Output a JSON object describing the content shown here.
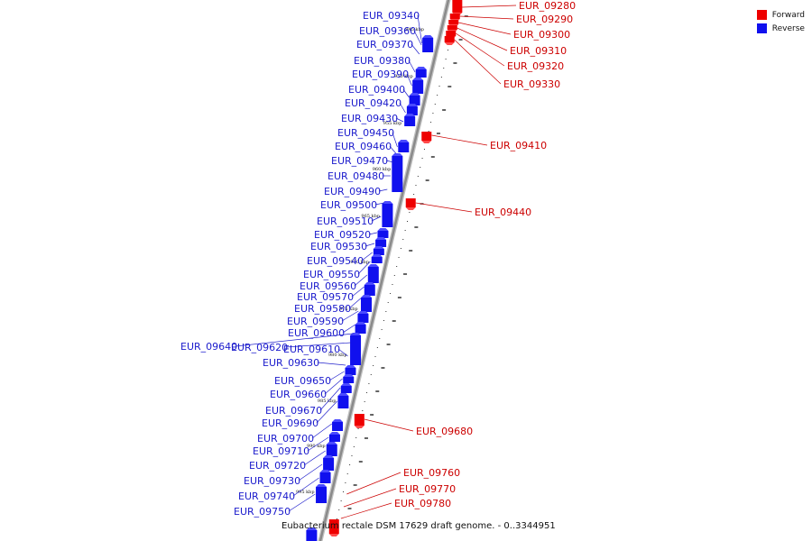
{
  "caption": "Eubacterium rectale DSM 17629 draft genome. - 0..3344951",
  "legend": {
    "items": [
      {
        "label": "Forward",
        "color": "#ee0000"
      },
      {
        "label": "Reverse",
        "color": "#1010ee"
      }
    ]
  },
  "colors": {
    "forward": "#ee0000",
    "reverse": "#1010ee",
    "backbone": "#8a8a8a",
    "leader_forward": "#cc0000",
    "leader_reverse": "#2020cc"
  },
  "ticks": [
    "945 kbp",
    "950 kbp",
    "955 kbp",
    "960 kbp",
    "965 kbp",
    "970 kbp",
    "975 kbp",
    "980 kbp",
    "985 kbp",
    "990 kbp",
    "995 kbp"
  ],
  "reverse_genes": [
    "EUR_09340",
    "EUR_09360",
    "EUR_09370",
    "EUR_09380",
    "EUR_09390",
    "EUR_09400",
    "EUR_09420",
    "EUR_09430",
    "EUR_09450",
    "EUR_09460",
    "EUR_09470",
    "EUR_09480",
    "EUR_09490",
    "EUR_09500",
    "EUR_09510",
    "EUR_09520",
    "EUR_09530",
    "EUR_09540",
    "EUR_09550",
    "EUR_09560",
    "EUR_09570",
    "EUR_09580",
    "EUR_09590",
    "EUR_09600",
    "EUR_09640",
    "EUR_09620",
    "EUR_09610",
    "EUR_09630",
    "EUR_09650",
    "EUR_09660",
    "EUR_09670",
    "EUR_09690",
    "EUR_09700",
    "EUR_09710",
    "EUR_09720",
    "EUR_09730",
    "EUR_09740",
    "EUR_09750"
  ],
  "forward_genes": [
    "EUR_09280",
    "EUR_09290",
    "EUR_09300",
    "EUR_09310",
    "EUR_09320",
    "EUR_09330",
    "EUR_09410",
    "EUR_09440",
    "EUR_09680",
    "EUR_09760",
    "EUR_09770",
    "EUR_09780"
  ]
}
